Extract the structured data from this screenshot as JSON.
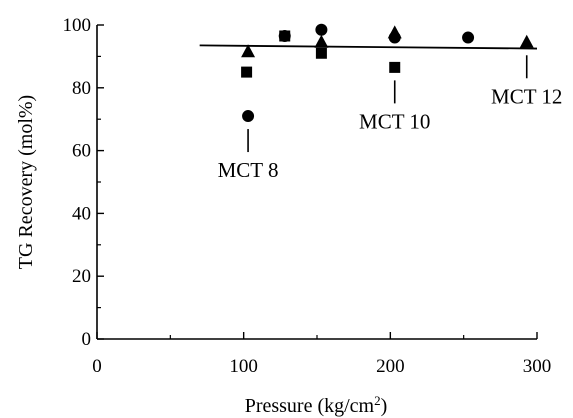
{
  "chart_data": {
    "type": "scatter",
    "xlabel": "Pressure (kg/cm",
    "xlabel_sup": "2",
    "xlabel_close": ")",
    "ylabel": "TG Recovery (mol%)",
    "xlim": [
      0,
      300
    ],
    "ylim": [
      0,
      100
    ],
    "xticks": [
      0,
      100,
      200,
      300
    ],
    "xtick_labels": [
      "0",
      "100",
      "200",
      "300"
    ],
    "yticks": [
      0,
      20,
      40,
      60,
      80,
      100
    ],
    "ytick_labels": [
      "0",
      "20",
      "40",
      "60",
      "80",
      "100"
    ],
    "grid": false,
    "series": [
      {
        "marker": "circle",
        "points": [
          {
            "x": 103,
            "y": 71
          },
          {
            "x": 128,
            "y": 96.5
          },
          {
            "x": 153,
            "y": 98.5
          },
          {
            "x": 203,
            "y": 96
          },
          {
            "x": 253,
            "y": 96
          }
        ]
      },
      {
        "marker": "square",
        "points": [
          {
            "x": 102,
            "y": 85
          },
          {
            "x": 128,
            "y": 96.5
          },
          {
            "x": 153,
            "y": 91
          },
          {
            "x": 203,
            "y": 86.5
          }
        ]
      },
      {
        "marker": "triangle",
        "points": [
          {
            "x": 103,
            "y": 91.5
          },
          {
            "x": 153,
            "y": 94.5
          },
          {
            "x": 203,
            "y": 97.5
          },
          {
            "x": 293,
            "y": 94.5
          }
        ]
      }
    ],
    "fit_line": {
      "x": [
        70,
        300
      ],
      "y": [
        93.5,
        92.5
      ]
    },
    "annotations": [
      {
        "text": "MCT 8",
        "x": 103,
        "y": 71
      },
      {
        "text": "MCT 10",
        "x": 203,
        "y": 86.5
      },
      {
        "text": "MCT 12",
        "x": 293,
        "y": 94.5
      }
    ]
  }
}
